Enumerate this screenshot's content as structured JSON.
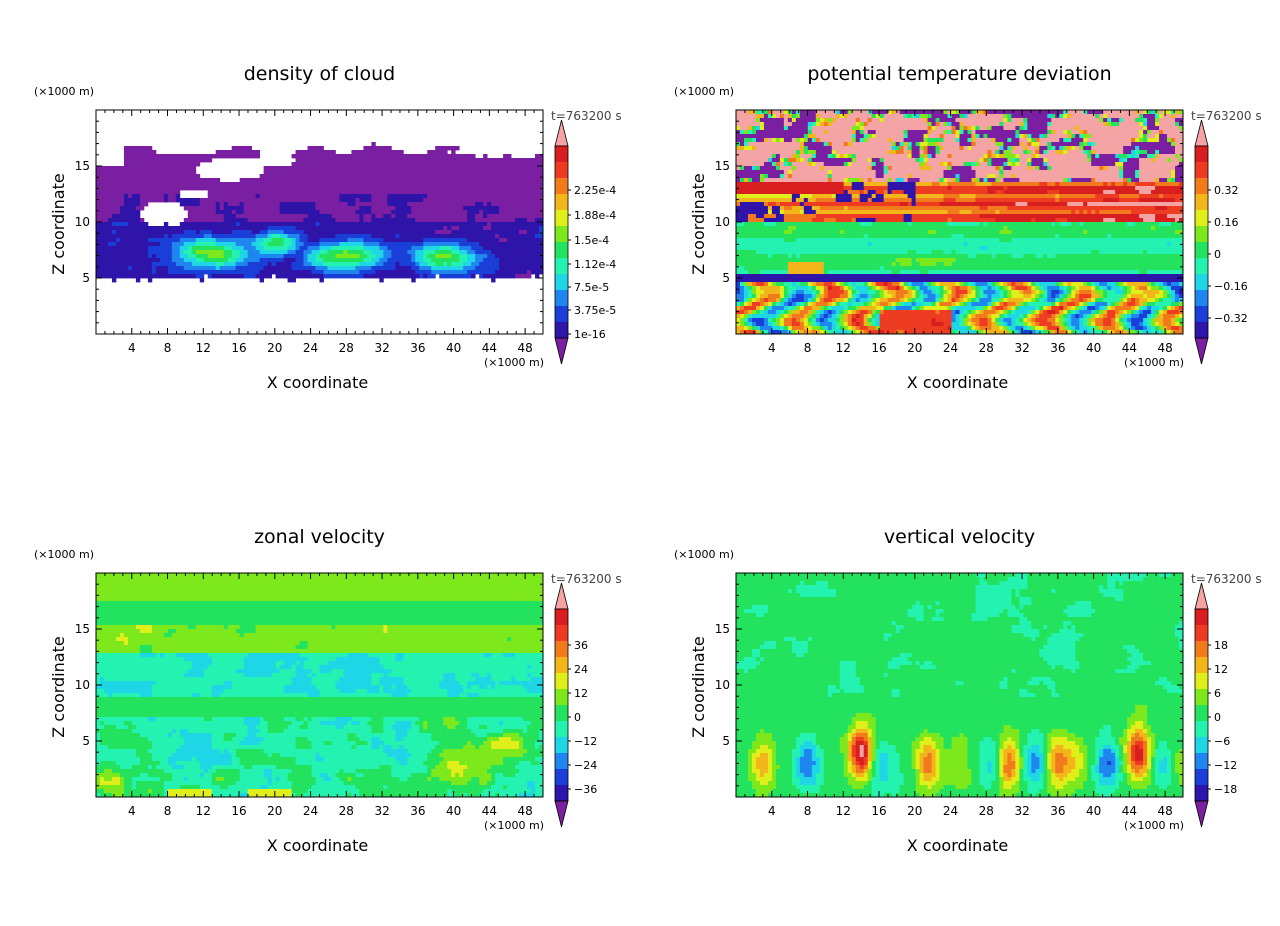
{
  "figure": {
    "time_label": "t=763200 s",
    "unit_x": "(×1000 m)",
    "unit_z": "(×1000 m)"
  },
  "colors": {
    "scale": [
      "#7b1fa2",
      "#2e14a8",
      "#1a3fd8",
      "#1f86f0",
      "#1fd6e6",
      "#24f2b0",
      "#22e25e",
      "#7de81c",
      "#e0ee1a",
      "#f2b61a",
      "#f07a1c",
      "#ee3c22",
      "#d81e1e",
      "#f4a4a4"
    ]
  },
  "chart_data": [
    {
      "type": "heatmap",
      "title": "density of cloud",
      "xlabel": "X coordinate",
      "ylabel": "Z coordinate",
      "xlim": [
        0,
        50
      ],
      "ylim": [
        0,
        20
      ],
      "xticks": [
        4,
        8,
        12,
        16,
        20,
        24,
        28,
        32,
        36,
        40,
        44,
        48
      ],
      "yticks": [
        5,
        10,
        15
      ],
      "colorbar": [
        "2.25e-4",
        "1.88e-4",
        "1.5e-4",
        "1.12e-4",
        "7.5e-5",
        "3.75e-5",
        "1e-16"
      ],
      "colorbar_values": [
        0.000225,
        0.000188,
        0.00015,
        0.000112,
        7.5e-05,
        3.75e-05,
        1e-16
      ]
    },
    {
      "type": "heatmap",
      "title": "potential temperature deviation",
      "xlabel": "X coordinate",
      "ylabel": "Z coordinate",
      "xlim": [
        0,
        50
      ],
      "ylim": [
        0,
        20
      ],
      "xticks": [
        4,
        8,
        12,
        16,
        20,
        24,
        28,
        32,
        36,
        40,
        44,
        48
      ],
      "yticks": [
        5,
        10,
        15
      ],
      "colorbar": [
        "0.32",
        "0.16",
        "0",
        "−0.16",
        "−0.32"
      ],
      "colorbar_values": [
        0.32,
        0.16,
        0,
        -0.16,
        -0.32
      ]
    },
    {
      "type": "heatmap",
      "title": "zonal velocity",
      "xlabel": "X coordinate",
      "ylabel": "Z coordinate",
      "xlim": [
        0,
        50
      ],
      "ylim": [
        0,
        20
      ],
      "xticks": [
        4,
        8,
        12,
        16,
        20,
        24,
        28,
        32,
        36,
        40,
        44,
        48
      ],
      "yticks": [
        5,
        10,
        15
      ],
      "colorbar": [
        "36",
        "24",
        "12",
        "0",
        "−12",
        "−24",
        "−36"
      ],
      "colorbar_values": [
        36,
        24,
        12,
        0,
        -12,
        -24,
        -36
      ]
    },
    {
      "type": "heatmap",
      "title": "vertical velocity",
      "xlabel": "X coordinate",
      "ylabel": "Z coordinate",
      "xlim": [
        0,
        50
      ],
      "ylim": [
        0,
        20
      ],
      "xticks": [
        4,
        8,
        12,
        16,
        20,
        24,
        28,
        32,
        36,
        40,
        44,
        48
      ],
      "yticks": [
        5,
        10,
        15
      ],
      "colorbar": [
        "18",
        "12",
        "6",
        "0",
        "−6",
        "−12",
        "−18"
      ],
      "colorbar_values": [
        18,
        12,
        6,
        0,
        -6,
        -12,
        -18
      ]
    }
  ]
}
